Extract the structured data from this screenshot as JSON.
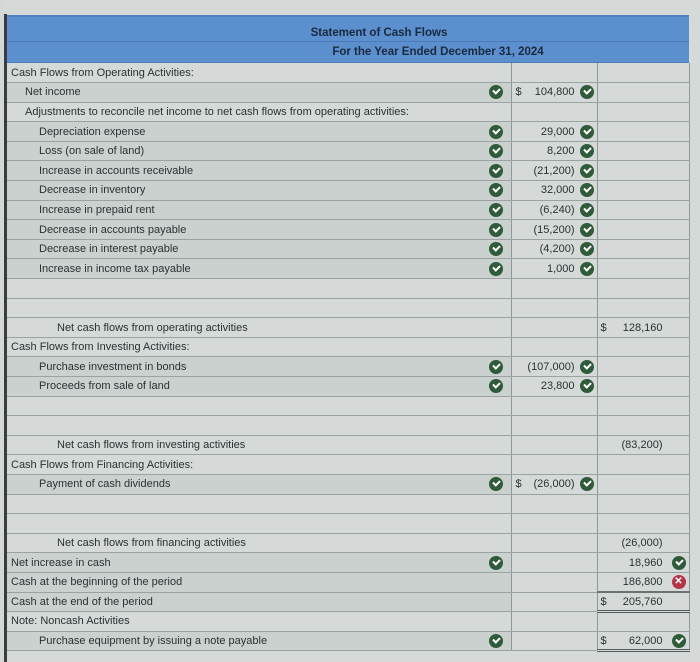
{
  "header": {
    "title": "Statement of Cash Flows",
    "period": "For the Year Ended December 31, 2024"
  },
  "rows": [
    {
      "label": "Cash Flows from Operating Activities:",
      "indent": 0
    },
    {
      "label": "Net income",
      "indent": 1,
      "check_left": true,
      "col2_dollar": "$",
      "col2": "104,800",
      "col2_status": "correct"
    },
    {
      "label": "Adjustments to reconcile net income to net cash flows from operating activities:",
      "indent": 1
    },
    {
      "label": "Depreciation expense",
      "indent": 2,
      "check_left": true,
      "col2": "29,000",
      "col2_status": "correct"
    },
    {
      "label": "Loss (on sale of land)",
      "indent": 2,
      "check_left": true,
      "col2": "8,200",
      "col2_status": "correct"
    },
    {
      "label": "Increase in accounts receivable",
      "indent": 2,
      "check_left": true,
      "col2": "(21,200)",
      "col2_status": "correct"
    },
    {
      "label": "Decrease in inventory",
      "indent": 2,
      "check_left": true,
      "col2": "32,000",
      "col2_status": "correct"
    },
    {
      "label": "Increase in prepaid rent",
      "indent": 2,
      "check_left": true,
      "col2": "(6,240)",
      "col2_status": "correct"
    },
    {
      "label": "Decrease in accounts payable",
      "indent": 2,
      "check_left": true,
      "col2": "(15,200)",
      "col2_status": "correct"
    },
    {
      "label": "Decrease in interest payable",
      "indent": 2,
      "check_left": true,
      "col2": "(4,200)",
      "col2_status": "correct"
    },
    {
      "label": "Increase in income tax payable",
      "indent": 2,
      "check_left": true,
      "col2": "1,000",
      "col2_status": "correct"
    },
    {
      "label": "",
      "indent": 2
    },
    {
      "label": "",
      "indent": 2
    },
    {
      "label": "Net cash flows from operating activities",
      "indent": 3,
      "col3_dollar": "$",
      "col3": "128,160"
    },
    {
      "label": "Cash Flows from Investing Activities:",
      "indent": 0
    },
    {
      "label": "Purchase investment in bonds",
      "indent": 2,
      "check_left": true,
      "col2": "(107,000)",
      "col2_status": "correct"
    },
    {
      "label": "Proceeds from sale of land",
      "indent": 2,
      "check_left": true,
      "col2": "23,800",
      "col2_status": "correct"
    },
    {
      "label": "",
      "indent": 2
    },
    {
      "label": "",
      "indent": 2
    },
    {
      "label": "Net cash flows from investing activities",
      "indent": 3,
      "col3": "(83,200)"
    },
    {
      "label": "Cash Flows from Financing Activities:",
      "indent": 0
    },
    {
      "label": "Payment of cash dividends",
      "indent": 2,
      "check_left": true,
      "col2_dollar": "$",
      "col2": "(26,000)",
      "col2_status": "correct"
    },
    {
      "label": "",
      "indent": 2
    },
    {
      "label": "",
      "indent": 2
    },
    {
      "label": "Net cash flows from financing activities",
      "indent": 3,
      "col3": "(26,000)"
    },
    {
      "label": "Net increase in cash",
      "indent": 0,
      "check_left": true,
      "col3": "18,960",
      "col3_status": "correct"
    },
    {
      "label": "Cash at the beginning of the period",
      "indent": 0,
      "col3": "186,800",
      "col3_status": "incorrect"
    },
    {
      "label": "Cash at the end of the period",
      "indent": 0,
      "col3_dollar": "$",
      "col3": "205,760",
      "col3_double": true
    },
    {
      "label": "Note: Noncash Activities",
      "indent": 0
    },
    {
      "label": "Purchase equipment by issuing a note payable",
      "indent": 2,
      "check_left": true,
      "col3_dollar": "$",
      "col3": "62,000",
      "col3_status": "correct",
      "col3_double": true
    }
  ],
  "colors": {
    "header_bg": "#5b8fce",
    "correct": "#2f5b3a",
    "incorrect": "#b5344a"
  }
}
